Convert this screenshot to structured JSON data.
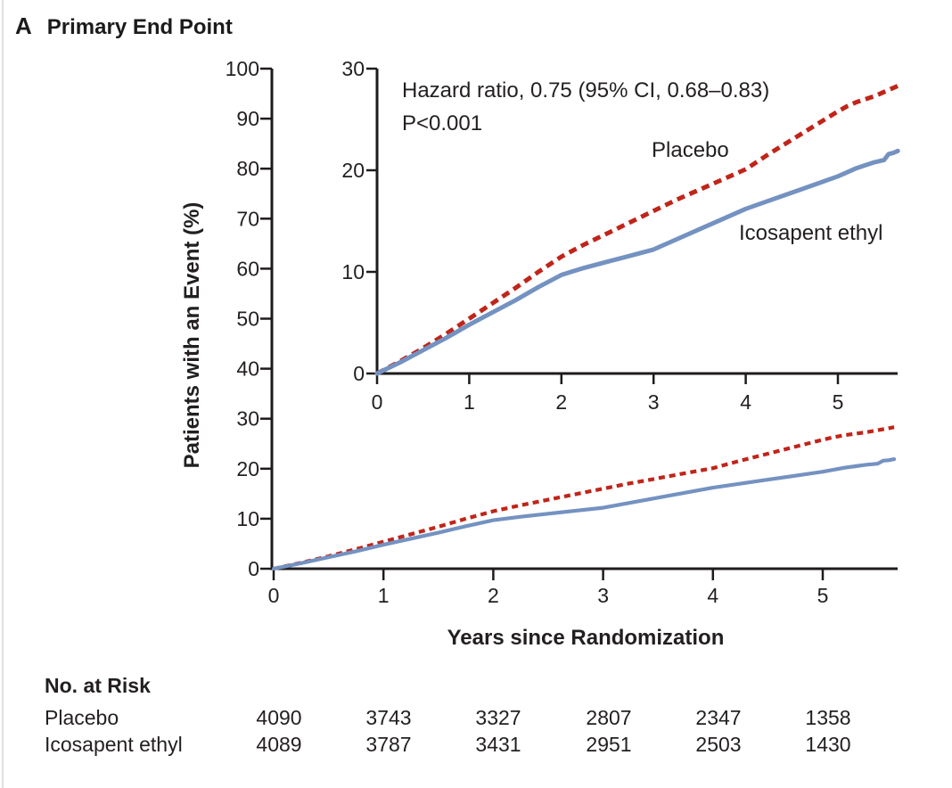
{
  "panel": {
    "letter": "A",
    "title": "Primary End Point"
  },
  "axes": {
    "xlabel": "Years since Randomization",
    "ylabel": "Patients with an Event (%)"
  },
  "annotation": {
    "line1": "Hazard ratio, 0.75 (95% CI, 0.68–0.83)",
    "line2": "P<0.001"
  },
  "series_labels": {
    "placebo": "Placebo",
    "icosapent": "Icosapent ethyl"
  },
  "colors": {
    "placebo": "#c0251a",
    "icosapent": "#7492c1",
    "axis": "#1f1b1c",
    "text": "#231f20"
  },
  "risk_table": {
    "header": "No. at Risk",
    "years": [
      0,
      1,
      2,
      3,
      4,
      5
    ],
    "rows": [
      {
        "label": "Placebo",
        "values": [
          "4090",
          "3743",
          "3327",
          "2807",
          "2347",
          "1358"
        ]
      },
      {
        "label": "Icosapent ethyl",
        "values": [
          "4089",
          "3787",
          "3431",
          "2951",
          "2503",
          "1430"
        ]
      }
    ]
  },
  "chart_data": {
    "type": "line",
    "title": "Primary End Point",
    "xlabel": "Years since Randomization",
    "ylabel": "Patients with an Event (%)",
    "annotation": "Hazard ratio, 0.75 (95% CI, 0.68–0.83); P<0.001",
    "legend_position": "inline-labels",
    "grid": false,
    "series": [
      {
        "name": "Placebo",
        "line_style": "dashed",
        "color": "#c0251a",
        "points": [
          [
            0,
            0
          ],
          [
            0.25,
            1.2
          ],
          [
            0.5,
            2.5
          ],
          [
            0.75,
            3.9
          ],
          [
            1,
            5.4
          ],
          [
            1.25,
            6.9
          ],
          [
            1.5,
            8.4
          ],
          [
            1.75,
            10.0
          ],
          [
            2,
            11.5
          ],
          [
            2.25,
            12.7
          ],
          [
            2.5,
            13.8
          ],
          [
            2.75,
            14.9
          ],
          [
            3,
            16.0
          ],
          [
            3.25,
            17.1
          ],
          [
            3.5,
            18.1
          ],
          [
            3.75,
            19.1
          ],
          [
            4,
            20.1
          ],
          [
            4.25,
            21.6
          ],
          [
            4.5,
            23.0
          ],
          [
            4.75,
            24.4
          ],
          [
            5,
            25.8
          ],
          [
            5.1,
            26.3
          ],
          [
            5.2,
            26.7
          ],
          [
            5.3,
            27.0
          ],
          [
            5.4,
            27.3
          ],
          [
            5.5,
            27.7
          ],
          [
            5.55,
            27.9
          ],
          [
            5.6,
            28.1
          ],
          [
            5.65,
            28.3
          ]
        ]
      },
      {
        "name": "Icosapent ethyl",
        "line_style": "solid",
        "color": "#7492c1",
        "points": [
          [
            0,
            0
          ],
          [
            0.25,
            1.1
          ],
          [
            0.5,
            2.3
          ],
          [
            0.75,
            3.5
          ],
          [
            1,
            4.8
          ],
          [
            1.25,
            6.0
          ],
          [
            1.5,
            7.2
          ],
          [
            1.75,
            8.5
          ],
          [
            2,
            9.7
          ],
          [
            2.25,
            10.4
          ],
          [
            2.5,
            11.0
          ],
          [
            2.75,
            11.6
          ],
          [
            3,
            12.2
          ],
          [
            3.25,
            13.2
          ],
          [
            3.5,
            14.2
          ],
          [
            3.75,
            15.2
          ],
          [
            4,
            16.2
          ],
          [
            4.25,
            17.0
          ],
          [
            4.5,
            17.8
          ],
          [
            4.75,
            18.6
          ],
          [
            5,
            19.4
          ],
          [
            5.1,
            19.8
          ],
          [
            5.2,
            20.2
          ],
          [
            5.3,
            20.5
          ],
          [
            5.4,
            20.8
          ],
          [
            5.5,
            21.0
          ],
          [
            5.55,
            21.6
          ],
          [
            5.6,
            21.7
          ],
          [
            5.65,
            21.9
          ]
        ]
      }
    ],
    "views": [
      {
        "name": "main",
        "xlim": [
          0,
          5.7
        ],
        "ylim": [
          0,
          100
        ],
        "x_ticks": [
          0,
          1,
          2,
          3,
          4,
          5
        ],
        "y_ticks": [
          0,
          10,
          20,
          30,
          40,
          50,
          60,
          70,
          80,
          90,
          100
        ]
      },
      {
        "name": "inset",
        "xlim": [
          0,
          5.65
        ],
        "ylim": [
          0,
          30
        ],
        "x_ticks": [
          0,
          1,
          2,
          3,
          4,
          5
        ],
        "y_ticks": [
          0,
          10,
          20,
          30
        ]
      }
    ]
  }
}
